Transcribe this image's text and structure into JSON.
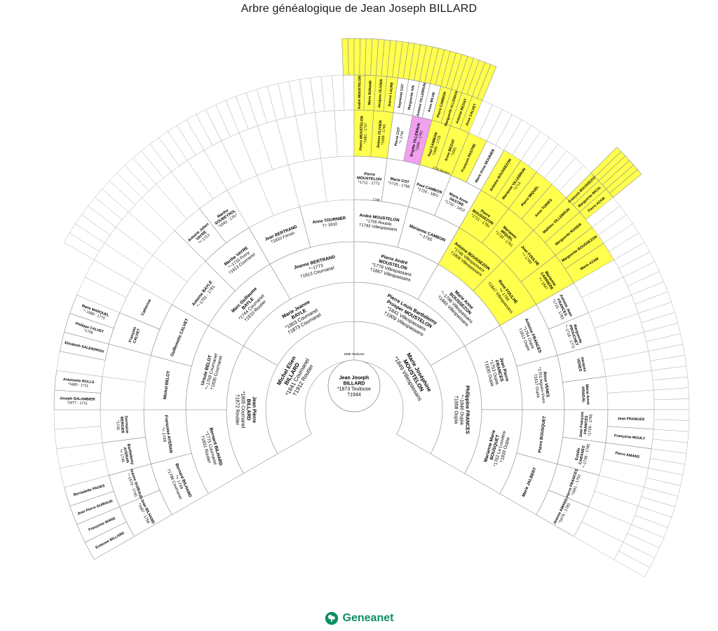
{
  "title": "Arbre généalogique de Jean Joseph BILLARD",
  "footer": {
    "logo_text": "Geneanet"
  },
  "colors": {
    "yellow": "#ffff4d",
    "magenta": "#f2a0f0",
    "white": "#ffffff",
    "border": "#aaaaaa",
    "accent_green": "#0e8f62"
  },
  "center": {
    "lines": [
      "Jean Joseph",
      "BILLARD",
      "*1873 Toulouse",
      "†1944"
    ]
  },
  "arc_labels": [
    {
      "text": "1898 Toulouse",
      "theta": 90,
      "r": 78
    },
    {
      "text": "1768",
      "theta": 84,
      "r": 300
    },
    {
      "text": "1726 Béziers",
      "theta": 70,
      "r": 362
    }
  ],
  "generations": [
    {
      "gen": 2,
      "cells": [
        {
          "slot": 0,
          "fill": "white",
          "lines": [
            "Michel Elien",
            "BILLARD",
            "*1841 Cournanel",
            "†1912 Routier"
          ]
        },
        {
          "slot": 1,
          "fill": "white",
          "lines": [
            "Marie Joséphine",
            "MOUSTELON",
            "*1849 Villespassans"
          ]
        }
      ]
    },
    {
      "gen": 3,
      "cells": [
        {
          "slot": 0,
          "fill": "white",
          "lines": [
            "Jean Pierre",
            "BILLARD",
            "*1805 Cournanel",
            "†1872 Routier"
          ]
        },
        {
          "slot": 1,
          "fill": "white",
          "lines": [
            "Marie Jeanne",
            "BAYLE",
            "*1803 Cournanel",
            "†1873 Cournanel"
          ]
        },
        {
          "slot": 2,
          "fill": "white",
          "lines": [
            "Pierre Louis Barthélemy",
            "Prosper MOUSTELON",
            "*1841 Villespassans",
            "†1909 Villespassans"
          ]
        },
        {
          "slot": 3,
          "fill": "white",
          "lines": [
            "Philippine FRANCES",
            "*~1846 Oupia",
            "†1908 Oupia"
          ]
        }
      ]
    },
    {
      "gen": 4,
      "cells": [
        {
          "slot": 0,
          "fill": "white",
          "lines": [
            "Bernard BILHARD",
            "*1775 Cournanel",
            "†1831 Routier"
          ]
        },
        {
          "slot": 1,
          "fill": "white",
          "lines": [
            "Ursule BELOT",
            "*~1769 Cournanel",
            "†1836 Cournanel"
          ]
        },
        {
          "slot": 2,
          "fill": "white",
          "lines": [
            "Marc Guillaume",
            "BAYLE",
            "*1744 Cournanel",
            "†1810 Routier"
          ]
        },
        {
          "slot": 3,
          "fill": "white",
          "lines": [
            "Jeanne BERTRAND",
            "*~1773",
            "†1813 Cournanel"
          ]
        },
        {
          "slot": 4,
          "fill": "white",
          "lines": [
            "Pierre André",
            "MOUSTELON",
            "*1779 Villespassans",
            "†1867 Villespassans"
          ]
        },
        {
          "slot": 5,
          "fill": "white",
          "lines": [
            "Marie Anne",
            "BOUSSEZON",
            "*~1798 Villespassans",
            "†1865 Villespassans"
          ]
        },
        {
          "slot": 6,
          "fill": "white",
          "lines": [
            "Jean Pierre",
            "FRANCES",
            "*1753 Oupia",
            "†1830 Oupia"
          ]
        },
        {
          "slot": 7,
          "fill": "white",
          "lines": [
            "Marianne Marie",
            "BOUSQUET",
            "*1762 La Louvière",
            "†1833 Oupia"
          ]
        }
      ]
    },
    {
      "gen": 5,
      "cells": [
        {
          "slot": 0,
          "fill": "white",
          "lines": [
            "Bernard BILHARD",
            "*< 1749",
            "†1786 Cournanel"
          ]
        },
        {
          "slot": 1,
          "fill": "white",
          "lines": [
            "Françoise AYERAN",
            "*< 1749"
          ]
        },
        {
          "slot": 2,
          "fill": "white",
          "lines": [
            "Michel BELOT"
          ]
        },
        {
          "slot": 3,
          "fill": "white",
          "lines": [
            "Guillemette CALVET"
          ]
        },
        {
          "slot": 4,
          "fill": "white",
          "lines": [
            "Antoine BAYLE",
            "*~1701 - 1761"
          ]
        },
        {
          "slot": 5,
          "fill": "white",
          "lines": [
            "Marthe VAYRE",
            "*~1733 Pomy",
            "†1813 Cournanel"
          ]
        },
        {
          "slot": 6,
          "fill": "white",
          "lines": [
            "Jean BERTRAND",
            "†1810 Ferran"
          ]
        },
        {
          "slot": 7,
          "fill": "white",
          "lines": [
            "Anne TOURNIER",
            "†< 1810"
          ]
        },
        {
          "slot": 8,
          "fill": "white",
          "lines": [
            "André MOUSTELON",
            "*1756 Roubia",
            "†1793 Villespassans"
          ]
        },
        {
          "slot": 9,
          "fill": "white",
          "lines": [
            "Marianne CAMBON",
            "*~1755"
          ]
        },
        {
          "slot": 10,
          "fill": "yellow",
          "lines": [
            "Antoine BOUSSEZON",
            "*1746 Villespassans",
            "†1808 Villespassans"
          ]
        },
        {
          "slot": 11,
          "fill": "yellow",
          "lines": [
            "Rose FOULHE",
            "*< 1766",
            "†1847 Villespassans"
          ]
        },
        {
          "slot": 12,
          "fill": "white",
          "lines": [
            "Antoine FRANCES",
            "*1754 Oupia",
            "†1813 Oupia"
          ]
        },
        {
          "slot": 13,
          "fill": "white",
          "lines": [
            "Rose VENES",
            "*1751 Aigues-Vives",
            "†1817 Oupia"
          ]
        },
        {
          "slot": 14,
          "fill": "white",
          "lines": [
            "Pierre BOUSQUET"
          ]
        },
        {
          "slot": 15,
          "fill": "white",
          "lines": [
            "Marie JALBERT"
          ]
        }
      ]
    },
    {
      "gen": 6,
      "cells": [
        {
          "slot": 0,
          "fill": "white",
          "lines": [
            "Jean BILHAND",
            "*1687 - 1758"
          ]
        },
        {
          "slot": 1,
          "fill": "white",
          "lines": [
            "Jeanne GUIRAUD",
            "*~1670 - 1740"
          ]
        },
        {
          "slot": 2,
          "fill": "white",
          "lines": [
            "Barthélemy",
            "AYERAN",
            "*< 1745"
          ]
        },
        {
          "slot": 3,
          "fill": "white",
          "lines": [
            "Germaine",
            "BERGER",
            "*1745"
          ]
        },
        {
          "slot": 6,
          "fill": "white",
          "lines": [
            "François",
            "CALVET"
          ]
        },
        {
          "slot": 7,
          "fill": "white",
          "lines": [
            "Catherine"
          ]
        },
        {
          "slot": 10,
          "fill": "white",
          "lines": [
            "Antoine Julien",
            "VAYRE",
            "*< 1713"
          ]
        },
        {
          "slot": 11,
          "fill": "white",
          "lines": [
            "Marthe",
            "SOUBEYROL",
            "*1692 - 1767"
          ]
        },
        {
          "slot": 16,
          "fill": "white",
          "lines": [
            "Pierre",
            "MOUSTELON",
            "*1711 - 1771"
          ]
        },
        {
          "slot": 17,
          "fill": "white",
          "lines": [
            "Marie COT",
            "*1715 - 1756"
          ]
        },
        {
          "slot": 18,
          "fill": "white",
          "lines": [
            "Paul CAMBON",
            "*1726 - 1801"
          ]
        },
        {
          "slot": 19,
          "fill": "white",
          "lines": [
            "Marie Anne",
            "PASTRE",
            "*1732 - 1813"
          ]
        },
        {
          "slot": 20,
          "fill": "yellow",
          "lines": [
            "Pierre",
            "BOUSSEZON",
            "*1711 - 1781"
          ]
        },
        {
          "slot": 21,
          "fill": "yellow",
          "lines": [
            "Marianne",
            "MIQUEL",
            "*1726 - 1761"
          ]
        },
        {
          "slot": 22,
          "fill": "yellow",
          "lines": [
            "Jean FOULHE",
            "*< 1766"
          ]
        },
        {
          "slot": 23,
          "fill": "yellow",
          "lines": [
            "Marianne",
            "CARRIERE",
            "†< 1847"
          ]
        },
        {
          "slot": 24,
          "fill": "white",
          "lines": [
            "Antoine Jean",
            "FRANCES",
            "*1715 - 1783"
          ]
        },
        {
          "slot": 25,
          "fill": "white",
          "lines": [
            "Marguerite",
            "PROUCHET",
            "*~1718 - 1773"
          ]
        },
        {
          "slot": 26,
          "fill": "white",
          "lines": [
            "Jacques",
            "VENES"
          ]
        },
        {
          "slot": 27,
          "fill": "white",
          "lines": [
            "Marie Anne",
            "PRADAL"
          ]
        },
        {
          "slot": 28,
          "fill": "white",
          "lines": [
            "Jean François",
            "FRANCES",
            "*1729 - 1785"
          ]
        },
        {
          "slot": 29,
          "fill": "white",
          "lines": [
            "Eulalie",
            "CABANES",
            "*~1738 - 1785"
          ]
        },
        {
          "slot": 30,
          "fill": "white",
          "lines": [
            "Pierre FRANCES",
            "*1681 - 1762"
          ]
        },
        {
          "slot": 31,
          "fill": "white",
          "lines": [
            "Jeanne AMANS",
            "*1679 - 1783"
          ]
        }
      ]
    },
    {
      "gen": 7,
      "cells": [
        {
          "slot": 0,
          "fill": "white",
          "lines": [
            "Estienne BILLARD"
          ]
        },
        {
          "slot": 1,
          "fill": "white",
          "lines": [
            "Françoise MANS"
          ]
        },
        {
          "slot": 2,
          "fill": "white",
          "lines": [
            "Jean Pierre GUIRAUD"
          ]
        },
        {
          "slot": 3,
          "fill": "white",
          "lines": [
            "Bernadette PAGES"
          ]
        },
        {
          "slot": 8,
          "fill": "white",
          "lines": [
            "Joseph SALAMBIER",
            "*1677 - 1711"
          ]
        },
        {
          "slot": 9,
          "fill": "white",
          "lines": [
            "Antoinette ROLLS",
            "*1683 - 1711"
          ]
        },
        {
          "slot": 11,
          "fill": "white",
          "lines": [
            "Elisabeth SALENDROU"
          ]
        },
        {
          "slot": 12,
          "fill": "white",
          "lines": [
            "Philippe CALVET",
            "*1706"
          ]
        },
        {
          "slot": 13,
          "fill": "white",
          "lines": [
            "Marie MARQUEL",
            "*~1689 - 1770"
          ]
        },
        {
          "slot": 32,
          "fill": "yellow",
          "lines": [
            "Pierre MOUSTELON",
            "*1681 - 1737"
          ]
        },
        {
          "slot": 33,
          "fill": "yellow",
          "lines": [
            "Jeanne OLIVIER",
            "*1689 - 1760"
          ]
        },
        {
          "slot": 34,
          "fill": "white",
          "lines": [
            "Pierre COT",
            "*< 1740"
          ]
        },
        {
          "slot": 35,
          "fill": "magenta",
          "lines": [
            "Brigitte VILLEBRUN",
            "*1690 - 1762"
          ]
        },
        {
          "slot": 36,
          "fill": "yellow",
          "lines": [
            "Paul CAMBON",
            "*1686 - 1725"
          ]
        },
        {
          "slot": 37,
          "fill": "yellow",
          "lines": [
            "Anne BEZIAT",
            "*1691"
          ]
        },
        {
          "slot": 38,
          "fill": "yellow",
          "lines": [
            "François PASTRE"
          ]
        },
        {
          "slot": 39,
          "fill": "white",
          "lines": [
            "Marie Anne MOUNIER"
          ]
        },
        {
          "slot": 40,
          "fill": "yellow",
          "lines": [
            "Antoine BOUSSEZON"
          ]
        },
        {
          "slot": 41,
          "fill": "yellow",
          "lines": [
            "Marianne VILLEBRUN",
            "*1714"
          ]
        },
        {
          "slot": 42,
          "fill": "yellow",
          "lines": [
            "Pierre MIQUEL"
          ]
        },
        {
          "slot": 43,
          "fill": "yellow",
          "lines": [
            "Anne TURIES"
          ]
        },
        {
          "slot": 44,
          "fill": "yellow",
          "lines": [
            "Mathieu VILLEBRUN"
          ]
        },
        {
          "slot": 45,
          "fill": "yellow",
          "lines": [
            "Marguerite ROGER"
          ]
        },
        {
          "slot": 46,
          "fill": "yellow",
          "lines": [
            "Marguerite BOUSSEZON"
          ]
        },
        {
          "slot": 47,
          "fill": "yellow",
          "lines": [
            "Marie AZAM"
          ]
        },
        {
          "slot": 56,
          "fill": "white",
          "lines": [
            "Jean FRANCES"
          ]
        },
        {
          "slot": 57,
          "fill": "white",
          "lines": [
            "Françoise MOULY"
          ]
        },
        {
          "slot": 58,
          "fill": "white",
          "lines": [
            "Pierre AMANS"
          ]
        }
      ]
    },
    {
      "gen": 8,
      "cells": [
        {
          "slot": 64,
          "fill": "yellow",
          "lines": [
            "André MOUSTELON"
          ]
        },
        {
          "slot": 65,
          "fill": "yellow",
          "lines": [
            "Marie BONAMI"
          ]
        },
        {
          "slot": 66,
          "fill": "yellow",
          "lines": [
            "Jacques OLIVIER"
          ]
        },
        {
          "slot": 67,
          "fill": "yellow",
          "lines": [
            "Jeanne LAURE"
          ]
        },
        {
          "slot": 68,
          "fill": "white",
          "lines": [
            "Raymond COT"
          ]
        },
        {
          "slot": 69,
          "fill": "white",
          "lines": [
            "Marguerite AIN"
          ]
        },
        {
          "slot": 70,
          "fill": "white",
          "lines": [
            "Antoine VILLEBRUN"
          ]
        },
        {
          "slot": 71,
          "fill": "white",
          "lines": [
            "Anne MILHE"
          ]
        },
        {
          "slot": 72,
          "fill": "yellow",
          "lines": [
            "Pierre CAMBON"
          ]
        },
        {
          "slot": 73,
          "fill": "yellow",
          "lines": [
            "Marguerite ALLEMANS"
          ]
        },
        {
          "slot": 74,
          "fill": "yellow",
          "lines": [
            "Antoine BEZIAT"
          ]
        },
        {
          "slot": 75,
          "fill": "yellow",
          "lines": [
            "Anne CALVET"
          ]
        },
        {
          "slot": 88,
          "fill": "yellow",
          "lines": [
            "François BOUSSEZON"
          ]
        },
        {
          "slot": 89,
          "fill": "yellow",
          "lines": [
            "Marguerite RICOL"
          ]
        },
        {
          "slot": 90,
          "fill": "yellow",
          "lines": [
            "Pierre AZAM"
          ]
        }
      ]
    },
    {
      "gen": 9,
      "cells": [],
      "ranges": [
        {
          "from": 126,
          "to": 151,
          "fill": "yellow"
        },
        {
          "from": 176,
          "to": 181,
          "fill": "yellow"
        }
      ]
    }
  ]
}
